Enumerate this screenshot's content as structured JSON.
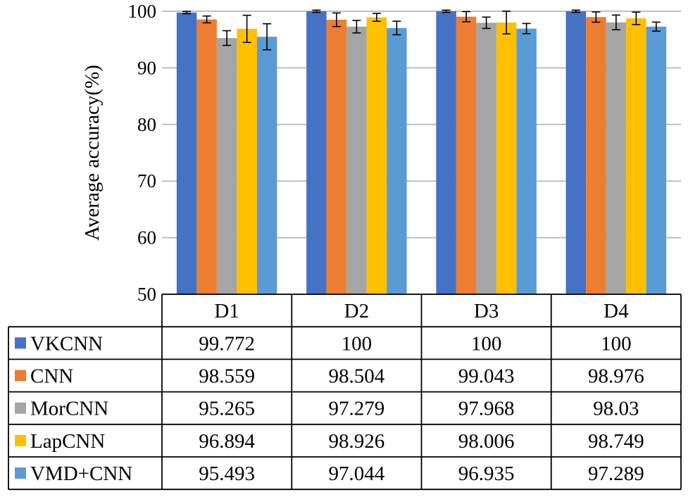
{
  "chart_data": {
    "type": "bar",
    "ylabel": "Average accuracy(%)",
    "ylim": [
      50,
      100
    ],
    "yticks": [
      "50",
      "60",
      "70",
      "80",
      "90",
      "100"
    ],
    "grid": true,
    "legend": "data-table",
    "categories": [
      "D1",
      "D2",
      "D3",
      "D4"
    ],
    "series": [
      {
        "name": "VKCNN",
        "color": "#4472C4",
        "values": [
          99.772,
          100,
          100,
          100
        ],
        "labels": [
          "99.772",
          "100",
          "100",
          "100"
        ],
        "errors": [
          0.2,
          0.2,
          0.2,
          0.2
        ]
      },
      {
        "name": "CNN",
        "color": "#ED7D31",
        "values": [
          98.559,
          98.504,
          99.043,
          98.976
        ],
        "labels": [
          "98.559",
          "98.504",
          "99.043",
          "98.976"
        ],
        "errors": [
          0.6,
          1.2,
          0.9,
          0.9
        ]
      },
      {
        "name": "MorCNN",
        "color": "#A5A5A5",
        "values": [
          95.265,
          97.279,
          97.968,
          98.03
        ],
        "labels": [
          "95.265",
          "97.279",
          "97.968",
          "98.03"
        ],
        "errors": [
          1.3,
          1.1,
          1.0,
          1.3
        ]
      },
      {
        "name": "LapCNN",
        "color": "#FFC000",
        "values": [
          96.894,
          98.926,
          98.006,
          98.749
        ],
        "labels": [
          "96.894",
          "98.926",
          "98.006",
          "98.749"
        ],
        "errors": [
          2.4,
          0.7,
          2.0,
          1.1
        ]
      },
      {
        "name": "VMD+CNN",
        "color": "#5B9BD5",
        "values": [
          95.493,
          97.044,
          96.935,
          97.289
        ],
        "labels": [
          "95.493",
          "97.044",
          "96.935",
          "97.289"
        ],
        "errors": [
          2.3,
          1.2,
          0.9,
          0.8
        ]
      }
    ]
  }
}
